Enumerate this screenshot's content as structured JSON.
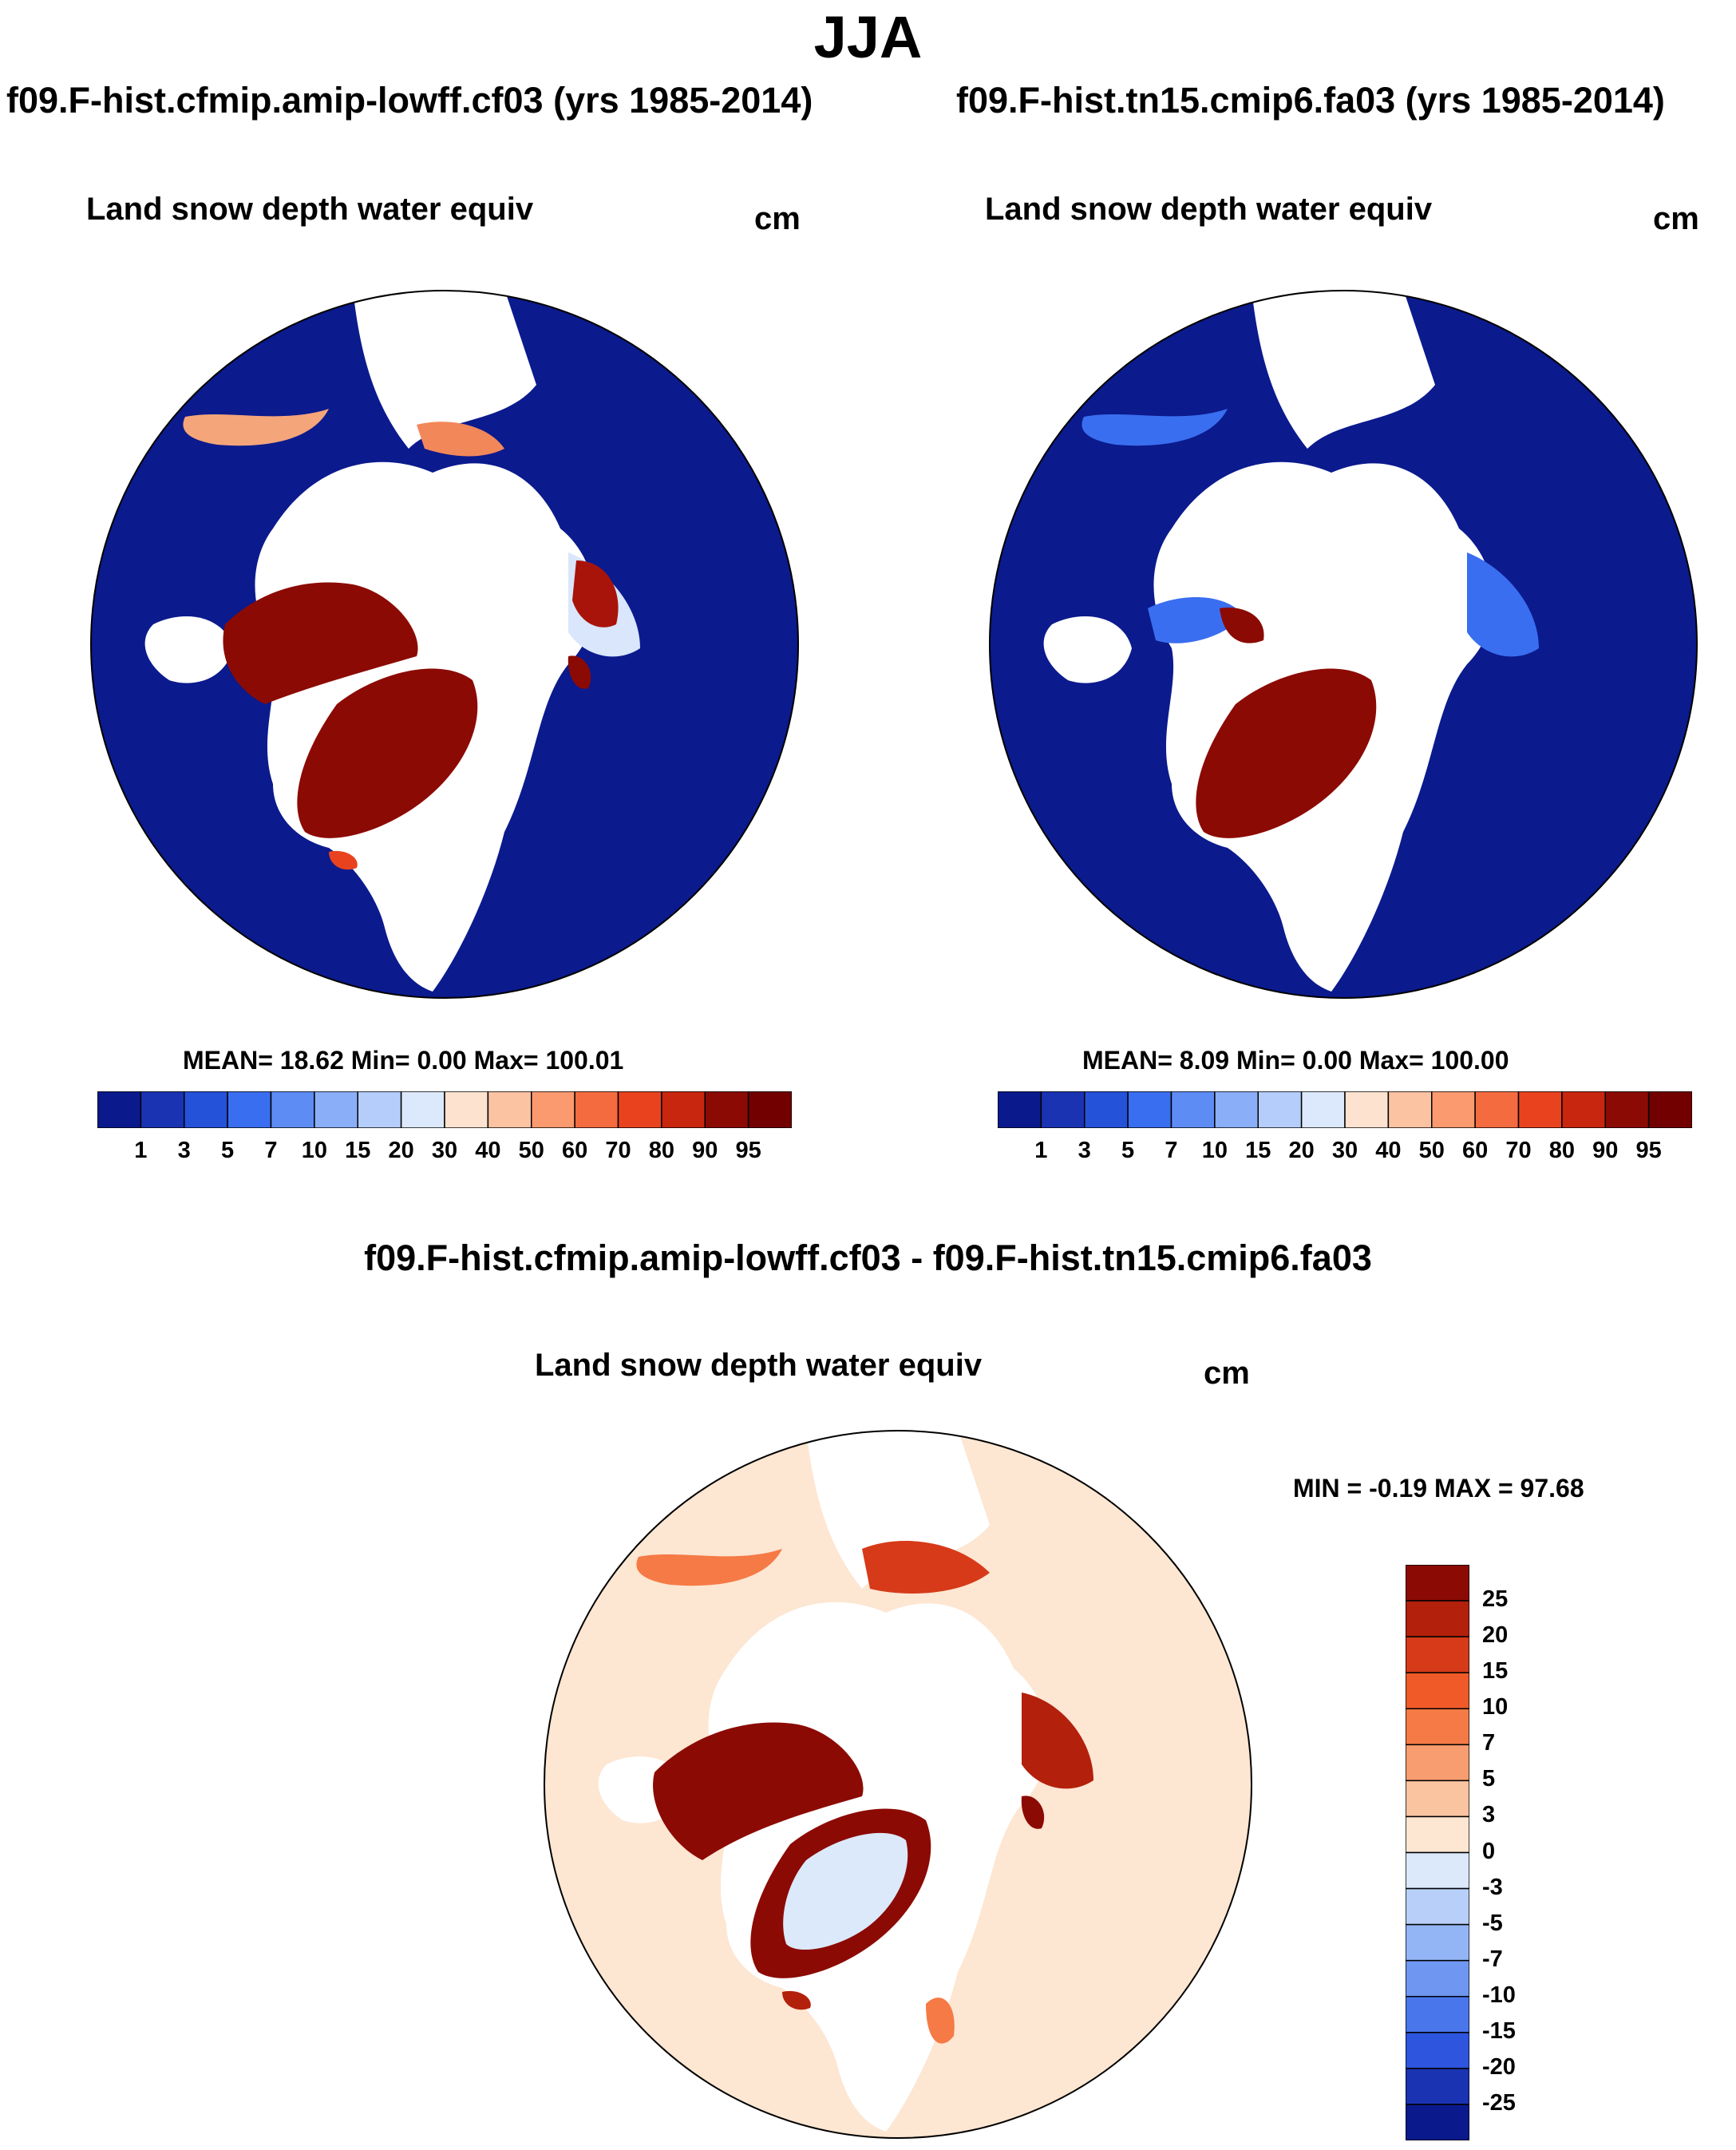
{
  "season": "JJA",
  "panels": [
    {
      "run": "f09.F-hist.cfmip.amip-lowff.cf03 (yrs 1985-2014)",
      "variable": "Land snow depth water equiv",
      "units": "cm",
      "stats": "MEAN=  18.62  Min=    0.00  Max= 100.01"
    },
    {
      "run": "f09.F-hist.tn15.cmip6.fa03 (yrs 1985-2014)",
      "variable": "Land snow depth water equiv",
      "units": "cm",
      "stats": "MEAN=   8.09  Min=    0.00  Max= 100.00"
    }
  ],
  "diff": {
    "title": "f09.F-hist.cfmip.amip-lowff.cf03 - f09.F-hist.tn15.cmip6.fa03",
    "variable": "Land snow depth water equiv",
    "units": "cm",
    "minmax": "MIN =  -0.19 MAX =  97.68"
  },
  "chart_data": [
    {
      "type": "heatmap",
      "title": "Land snow depth water equiv",
      "units": "cm",
      "projection": "north-polar-stereographic",
      "mean": 18.62,
      "min": 0.0,
      "max": 100.01,
      "colorbar_levels": [
        1,
        3,
        5,
        7,
        10,
        15,
        20,
        30,
        40,
        50,
        60,
        70,
        80,
        90,
        95
      ],
      "colorbar_labels": [
        "1",
        "3",
        "5",
        "7",
        "10",
        "15",
        "20",
        "30",
        "40",
        "50",
        "60",
        "70",
        "80",
        "90",
        "95"
      ],
      "colors": [
        "#0a1a8c",
        "#1a33b3",
        "#2452d9",
        "#3a6ef0",
        "#5d8cf5",
        "#8aaef8",
        "#b4cdfa",
        "#dce9fc",
        "#fde3cf",
        "#fcc3a3",
        "#fb9a6e",
        "#f56b40",
        "#e8431e",
        "#c9260f",
        "#8c0a04",
        "#730000"
      ]
    },
    {
      "type": "heatmap",
      "title": "Land snow depth water equiv",
      "units": "cm",
      "projection": "north-polar-stereographic",
      "mean": 8.09,
      "min": 0.0,
      "max": 100.0,
      "colorbar_levels": [
        1,
        3,
        5,
        7,
        10,
        15,
        20,
        30,
        40,
        50,
        60,
        70,
        80,
        90,
        95
      ],
      "colorbar_labels": [
        "1",
        "3",
        "5",
        "7",
        "10",
        "15",
        "20",
        "30",
        "40",
        "50",
        "60",
        "70",
        "80",
        "90",
        "95"
      ],
      "colors": [
        "#0a1a8c",
        "#1a33b3",
        "#2452d9",
        "#3a6ef0",
        "#5d8cf5",
        "#8aaef8",
        "#b4cdfa",
        "#dce9fc",
        "#fde3cf",
        "#fcc3a3",
        "#fb9a6e",
        "#f56b40",
        "#e8431e",
        "#c9260f",
        "#8c0a04",
        "#730000"
      ]
    },
    {
      "type": "heatmap",
      "title": "Land snow depth water equiv",
      "units": "cm",
      "projection": "north-polar-stereographic",
      "min": -0.19,
      "max": 97.68,
      "colorbar_levels": [
        25,
        20,
        15,
        10,
        7,
        5,
        3,
        0,
        -3,
        -5,
        -7,
        -10,
        -15,
        -20,
        -25
      ],
      "colorbar_labels": [
        "25",
        "20",
        "15",
        "10",
        "7",
        "5",
        "3",
        "0",
        "-3",
        "-5",
        "-7",
        "-10",
        "-15",
        "-20",
        "-25"
      ],
      "colors": [
        "#8c0a04",
        "#b3200c",
        "#d63a18",
        "#ef5a28",
        "#f57a45",
        "#f89d6f",
        "#fbc4a0",
        "#fde6d2",
        "#dbe9fb",
        "#b8d0f9",
        "#93b5f6",
        "#6f97f2",
        "#4a76ec",
        "#2d55de",
        "#1a33b3",
        "#0a1a8c"
      ]
    }
  ]
}
